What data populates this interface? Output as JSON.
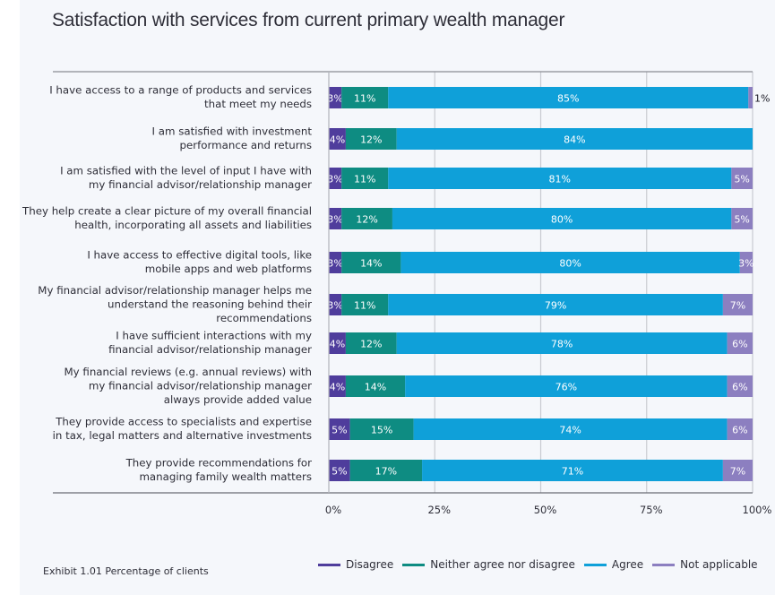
{
  "chart_data": {
    "type": "bar",
    "orientation": "horizontal",
    "stacked": true,
    "title": "Satisfaction with services from current primary wealth manager",
    "footnote": "Exhibit 1.01 Percentage of clients",
    "xlabel": "",
    "ylabel": "",
    "xlim": [
      0,
      100
    ],
    "xticks": [
      "0%",
      "25%",
      "50%",
      "75%",
      "100%"
    ],
    "xtick_values": [
      0,
      25,
      50,
      75,
      100
    ],
    "grid": true,
    "legend_position": "bottom-right",
    "categories": [
      [
        "I have access to a range of products and services",
        "that meet my needs"
      ],
      [
        "I am satisfied with investment",
        "performance and returns"
      ],
      [
        "I am satisfied with the level of input I have with",
        "my financial advisor/relationship manager"
      ],
      [
        "They help create a clear picture of my overall financial",
        "health, incorporating all assets and liabilities"
      ],
      [
        "I have access to effective digital tools, like",
        "mobile apps and web platforms"
      ],
      [
        "My financial advisor/relationship manager helps me",
        "understand the reasoning behind their",
        "recommendations"
      ],
      [
        "I have sufficient interactions with my",
        "financial advisor/relationship manager"
      ],
      [
        "My financial reviews (e.g. annual reviews) with",
        "my financial advisor/relationship manager",
        "always provide added value"
      ],
      [
        "They provide access to specialists and expertise",
        "in tax, legal matters and alternative investments"
      ],
      [
        "They provide recommendations for",
        "managing family wealth matters"
      ]
    ],
    "series": [
      {
        "name": "Disagree",
        "color": "#4f3d9c",
        "values": [
          3,
          4,
          3,
          3,
          3,
          3,
          4,
          4,
          5,
          5
        ]
      },
      {
        "name": "Neither agree nor disagree",
        "color": "#0e8c82",
        "values": [
          11,
          12,
          11,
          12,
          14,
          11,
          12,
          14,
          15,
          17
        ]
      },
      {
        "name": "Agree",
        "color": "#0fa0d9",
        "values": [
          85,
          84,
          81,
          80,
          80,
          79,
          78,
          76,
          74,
          71
        ]
      },
      {
        "name": "Not applicable",
        "color": "#8c7fc0",
        "values": [
          1,
          0,
          5,
          5,
          3,
          7,
          6,
          6,
          6,
          7
        ]
      }
    ],
    "value_suffix": "%"
  }
}
